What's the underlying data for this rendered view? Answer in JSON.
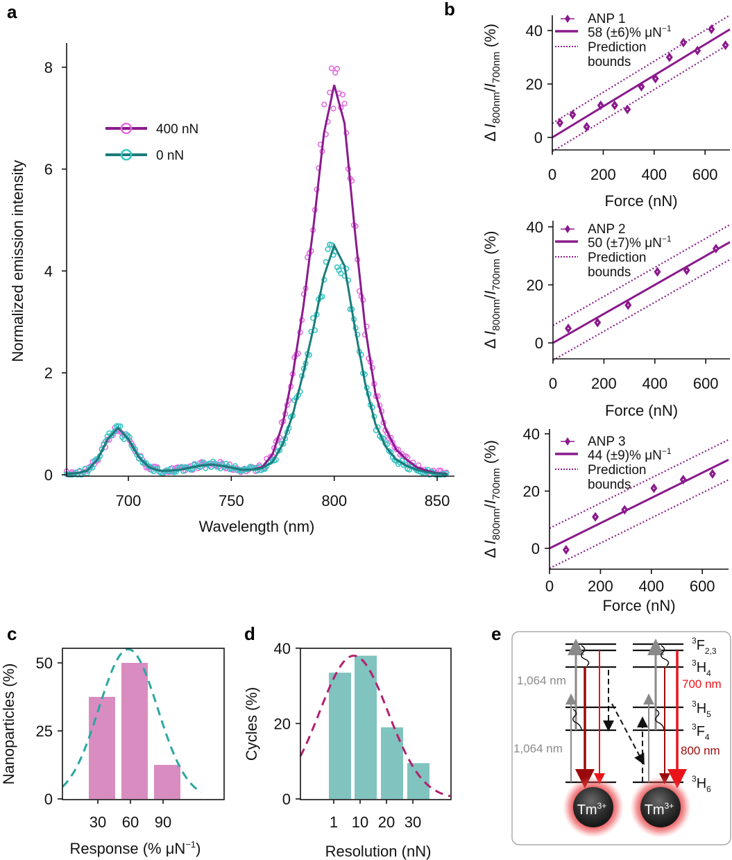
{
  "panel_labels": {
    "a": "a",
    "b": "b",
    "c": "c",
    "d": "d",
    "e": "e"
  },
  "colors": {
    "purple": "#8a1a8c",
    "magenta": "#e46be0",
    "teal_line": "#1b7c7a",
    "teal_pts": "#36c6c4",
    "pink_bar": "#d98cbf",
    "teal_bar": "#80c3bf",
    "dash_teal": "#2aa6a2",
    "dash_magenta": "#b3206e",
    "red": "#e8141a",
    "darkred": "#9b0a0a",
    "gray": "#8a8a8a"
  },
  "chart_data": [
    {
      "id": "a",
      "type": "line",
      "xlabel": "Wavelength (nm)",
      "ylabel": "Normalized emission intensity",
      "xlim": [
        670,
        857
      ],
      "ylim": [
        0,
        8.5
      ],
      "xticks": [
        "700",
        "750",
        "800",
        "850"
      ],
      "yticks": [
        "0",
        "2",
        "4",
        "6",
        "8"
      ],
      "legend_position": "upper-left",
      "x": [
        670,
        675,
        680,
        685,
        690,
        695,
        700,
        705,
        710,
        715,
        720,
        725,
        730,
        735,
        740,
        745,
        750,
        755,
        760,
        765,
        770,
        775,
        780,
        785,
        790,
        795,
        800,
        805,
        810,
        815,
        820,
        825,
        830,
        835,
        840,
        845,
        850,
        855
      ],
      "series": [
        {
          "name": "400 nN",
          "values": [
            0.02,
            0.03,
            0.08,
            0.3,
            0.7,
            0.92,
            0.7,
            0.35,
            0.15,
            0.08,
            0.08,
            0.1,
            0.14,
            0.18,
            0.2,
            0.18,
            0.14,
            0.1,
            0.1,
            0.15,
            0.4,
            1.0,
            2.0,
            3.3,
            4.9,
            6.7,
            7.65,
            6.9,
            4.8,
            2.9,
            1.6,
            0.9,
            0.5,
            0.3,
            0.15,
            0.08,
            0.03,
            0.02
          ]
        },
        {
          "name": "0 nN",
          "values": [
            0.02,
            0.03,
            0.08,
            0.3,
            0.7,
            0.92,
            0.7,
            0.35,
            0.15,
            0.08,
            0.08,
            0.1,
            0.14,
            0.18,
            0.2,
            0.18,
            0.14,
            0.1,
            0.1,
            0.13,
            0.25,
            0.6,
            1.2,
            2.0,
            2.9,
            3.9,
            4.5,
            4.1,
            2.9,
            1.8,
            1.0,
            0.55,
            0.3,
            0.18,
            0.1,
            0.05,
            0.02,
            0.01
          ]
        }
      ]
    },
    {
      "id": "b1",
      "type": "scatter",
      "xlabel": "Force (nN)",
      "ylabel": {
        "delta": "Δ ",
        "i1": "I",
        "s1": "800nm",
        "slash": "/",
        "i2": "I",
        "s2": "700nm",
        "unit": " (%)"
      },
      "xticks": [
        "0",
        "200",
        "400",
        "600"
      ],
      "yticks": [
        "0",
        "20",
        "40"
      ],
      "legend": {
        "name": "ANP 1",
        "fit": "58 (±6)% μN",
        "fit_sup": "−1",
        "bounds1": "Prediction",
        "bounds2": "bounds"
      },
      "slope": 0.058,
      "intercept": 0,
      "bound_halfwidth": 5.3,
      "points": [
        [
          30,
          5.5
        ],
        [
          80,
          8.5
        ],
        [
          135,
          4
        ],
        [
          190,
          12
        ],
        [
          245,
          12
        ],
        [
          295,
          10.5
        ],
        [
          350,
          19
        ],
        [
          405,
          22
        ],
        [
          460,
          30
        ],
        [
          515,
          35.5
        ],
        [
          570,
          32.5
        ],
        [
          625,
          40.5
        ],
        [
          680,
          34.5
        ]
      ]
    },
    {
      "id": "b2",
      "type": "scatter",
      "xlabel": "Force (nN)",
      "ylabel": {
        "delta": "Δ ",
        "i1": "I",
        "s1": "800nm",
        "slash": "/",
        "i2": "I",
        "s2": "700nm",
        "unit": " (%)"
      },
      "xticks": [
        "0",
        "200",
        "400",
        "600"
      ],
      "yticks": [
        "0",
        "20",
        "40"
      ],
      "legend": {
        "name": "ANP 2",
        "fit": "50 (±7)% μN",
        "fit_sup": "−1",
        "bounds1": "Prediction",
        "bounds2": "bounds"
      },
      "slope": 0.05,
      "intercept": 0,
      "bound_halfwidth": 6,
      "points": [
        [
          60,
          5
        ],
        [
          175,
          7
        ],
        [
          295,
          13
        ],
        [
          410,
          24.5
        ],
        [
          525,
          25
        ],
        [
          640,
          32.5
        ]
      ]
    },
    {
      "id": "b3",
      "type": "scatter",
      "xlabel": "Force (nN)",
      "ylabel": {
        "delta": "Δ ",
        "i1": "I",
        "s1": "800nm",
        "slash": "/",
        "i2": "I",
        "s2": "700nm",
        "unit": " (%)"
      },
      "xticks": [
        "0",
        "200",
        "400",
        "600"
      ],
      "yticks": [
        "0",
        "20",
        "40"
      ],
      "legend": {
        "name": "ANP 3",
        "fit": "44 (±9)% μN",
        "fit_sup": "−1",
        "bounds1": "Prediction",
        "bounds2": "bounds"
      },
      "slope": 0.044,
      "intercept": 0,
      "bound_halfwidth": 7,
      "points": [
        [
          65,
          -0.5
        ],
        [
          180,
          11
        ],
        [
          295,
          13.5
        ],
        [
          410,
          21
        ],
        [
          525,
          24
        ],
        [
          640,
          26
        ]
      ]
    },
    {
      "id": "c",
      "type": "bar",
      "xlabel": "Response (% μN",
      "xlabel_sup": "−1",
      "xlabel_end": ")",
      "ylabel": "Nanoparticles (%)",
      "categories": [
        "30",
        "60",
        "90"
      ],
      "values": [
        37.5,
        50,
        12.5
      ],
      "yticks": [
        "0",
        "25",
        "50"
      ],
      "ylim": [
        0,
        55
      ],
      "gaussian": {
        "mean": 58,
        "sigma": 27,
        "amplitude": 55
      }
    },
    {
      "id": "d",
      "type": "bar",
      "xlabel": "Resolution (nN)",
      "ylabel": "Cycles (%)",
      "categories": [
        "1",
        "10",
        "20",
        "30"
      ],
      "values": [
        33.5,
        38,
        19,
        9.5
      ],
      "yticks": [
        "0",
        "20",
        "40"
      ],
      "ylim": [
        0,
        40
      ],
      "gaussian": {
        "mean": 7.6,
        "sigma": 13,
        "amplitude": 38
      }
    }
  ],
  "diagram_e": {
    "levels": [
      {
        "term": "F",
        "sup": "3",
        "sub": "2,3"
      },
      {
        "term": "H",
        "sup": "3",
        "sub": "4"
      },
      {
        "term": "H",
        "sup": "3",
        "sub": "5"
      },
      {
        "term": "F",
        "sup": "3",
        "sub": "4"
      },
      {
        "term": "H",
        "sup": "3",
        "sub": "6"
      }
    ],
    "excitation_1": "1,064 nm",
    "excitation_2": "1,064 nm",
    "emission_700": "700 nm",
    "emission_800": "800 nm",
    "ion_label": "Tm",
    "ion_charge": "3+"
  }
}
